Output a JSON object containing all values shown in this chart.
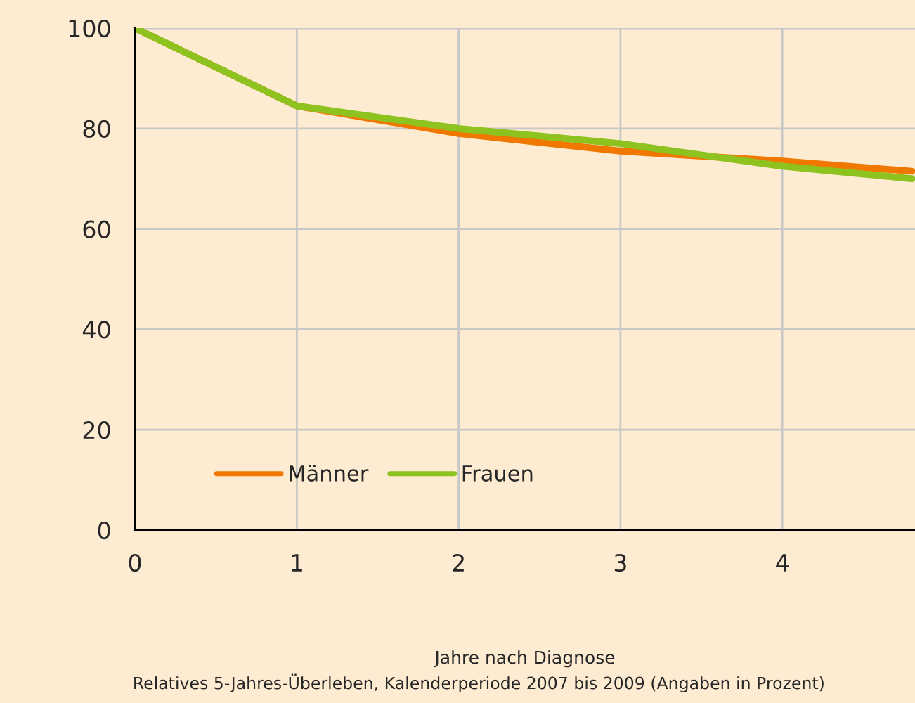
{
  "chart_data": {
    "type": "line",
    "xlabel": "Jahre nach Diagnose",
    "annotations": [
      "Relatives 5-Jahres-Überleben, Kalenderperiode 2007 bis 2009 (Angaben in Prozent)"
    ],
    "x": [
      0,
      1,
      2,
      3,
      4,
      4.8
    ],
    "series": [
      {
        "name": "Männer",
        "color": "#f07800",
        "values": [
          100,
          84.5,
          79,
          75.5,
          73.5,
          71.5
        ]
      },
      {
        "name": "Frauen",
        "color": "#8dc21f",
        "values": [
          100,
          84.5,
          80,
          77,
          72.5,
          70
        ]
      }
    ],
    "xlim": [
      0,
      4.82
    ],
    "ylim": [
      0,
      100
    ],
    "xticks": [
      0,
      1,
      2,
      3,
      4
    ],
    "yticks": [
      0,
      20,
      40,
      60,
      80,
      100
    ],
    "grid": true,
    "legend": "bottom left",
    "marker": "none",
    "line_style": "solid"
  }
}
